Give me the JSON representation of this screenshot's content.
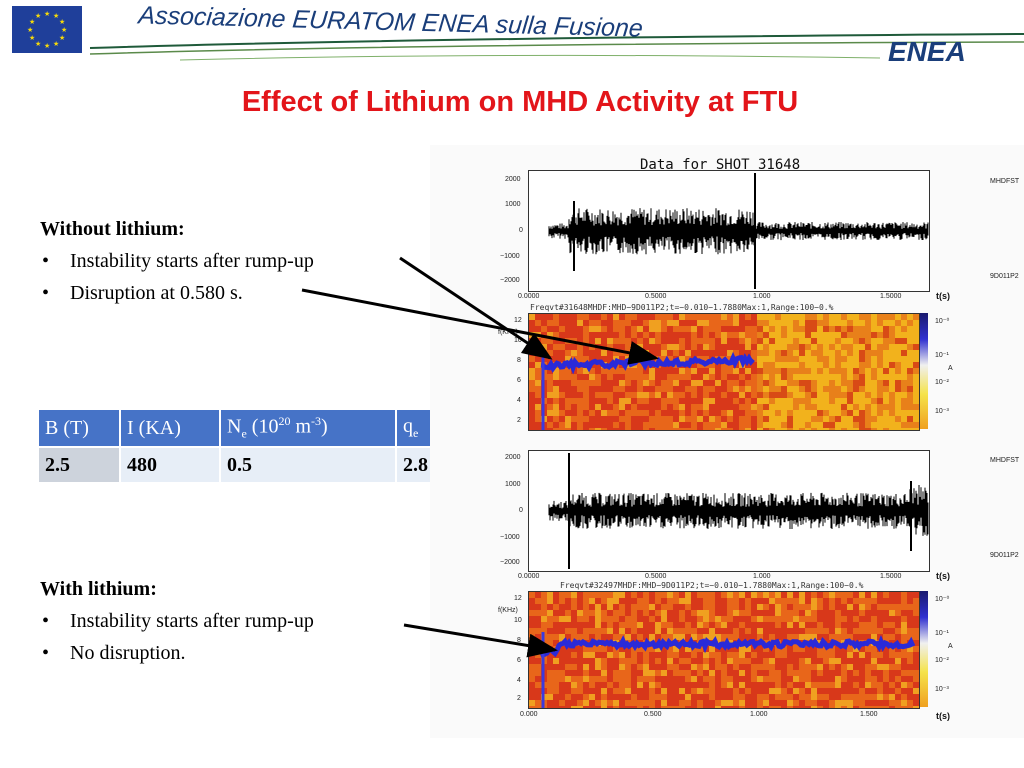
{
  "header": {
    "title": "Associazione EURATOM ENEA sulla Fusione",
    "logo_text": "ENEA"
  },
  "slide_title": "Effect of Lithium on MHD Activity at FTU",
  "without_lithium": {
    "heading": "Without lithium:",
    "bullets": [
      "Instability starts after rump-up",
      "Disruption at 0.580 s."
    ]
  },
  "with_lithium": {
    "heading": "With lithium:",
    "bullets": [
      "Instability starts after rump-up",
      "No disruption."
    ]
  },
  "table": {
    "headers": [
      "B (T)",
      "I (KA)",
      "N",
      "e",
      " (10",
      "20",
      " m",
      "-3",
      ")",
      "q",
      "e"
    ],
    "row": [
      "2.5",
      "480",
      "0.5",
      "2.8"
    ]
  },
  "figure": {
    "title": "Data for  SHOT  31648",
    "signal_top": {
      "right_label_1": "MHDFST",
      "right_label_2": "9D011P2",
      "y_ticks": [
        "2000",
        "1000",
        "0",
        "−1000",
        "−2000"
      ],
      "x_ticks": [
        "0.0000",
        "0.5000",
        "1.000",
        "1.5000"
      ],
      "x_unit": "t(s)"
    },
    "spectrogram_top": {
      "caption": "Freqvt#31648MHDF:MHD−9D011P2;t=−0.010−1.7880Max:1,Range:100−0.%",
      "y_unit": "f(KHz)",
      "y_ticks": [
        "12",
        "10",
        "8",
        "6",
        "4",
        "2"
      ],
      "scale_ticks": [
        "10⁻⁰",
        "10⁻¹",
        "10⁻²",
        "10⁻³"
      ],
      "scale_unit": "A"
    },
    "signal_bottom": {
      "right_label_1": "MHDFST",
      "right_label_2": "9D011P2",
      "y_ticks": [
        "2000",
        "1000",
        "0",
        "−1000",
        "−2000"
      ],
      "x_ticks": [
        "0.0000",
        "0.5000",
        "1.000",
        "1.5000"
      ],
      "x_unit": "t(s)"
    },
    "spectrogram_bottom": {
      "caption": "Freqvt#32497MHDF:MHD−9D011P2;t=−0.010−1.7880Max:1,Range:100−0.%",
      "y_unit": "f(KHz)",
      "y_ticks": [
        "12",
        "10",
        "8",
        "6",
        "4",
        "2"
      ],
      "x_ticks": [
        "0.000",
        "0.500",
        "1.000",
        "1.500"
      ],
      "scale_ticks": [
        "10⁻⁰",
        "10⁻¹",
        "10⁻²",
        "10⁻³"
      ],
      "scale_unit": "A",
      "x_unit": "t(s)"
    }
  },
  "colors": {
    "title_red": "#e3151a",
    "header_blue": "#1a3e7a",
    "table_header": "#4673c7",
    "table_cell": "#e7eef7",
    "spectrogram_hot": "#e86418",
    "mode_blue": "#2a2ad8"
  }
}
